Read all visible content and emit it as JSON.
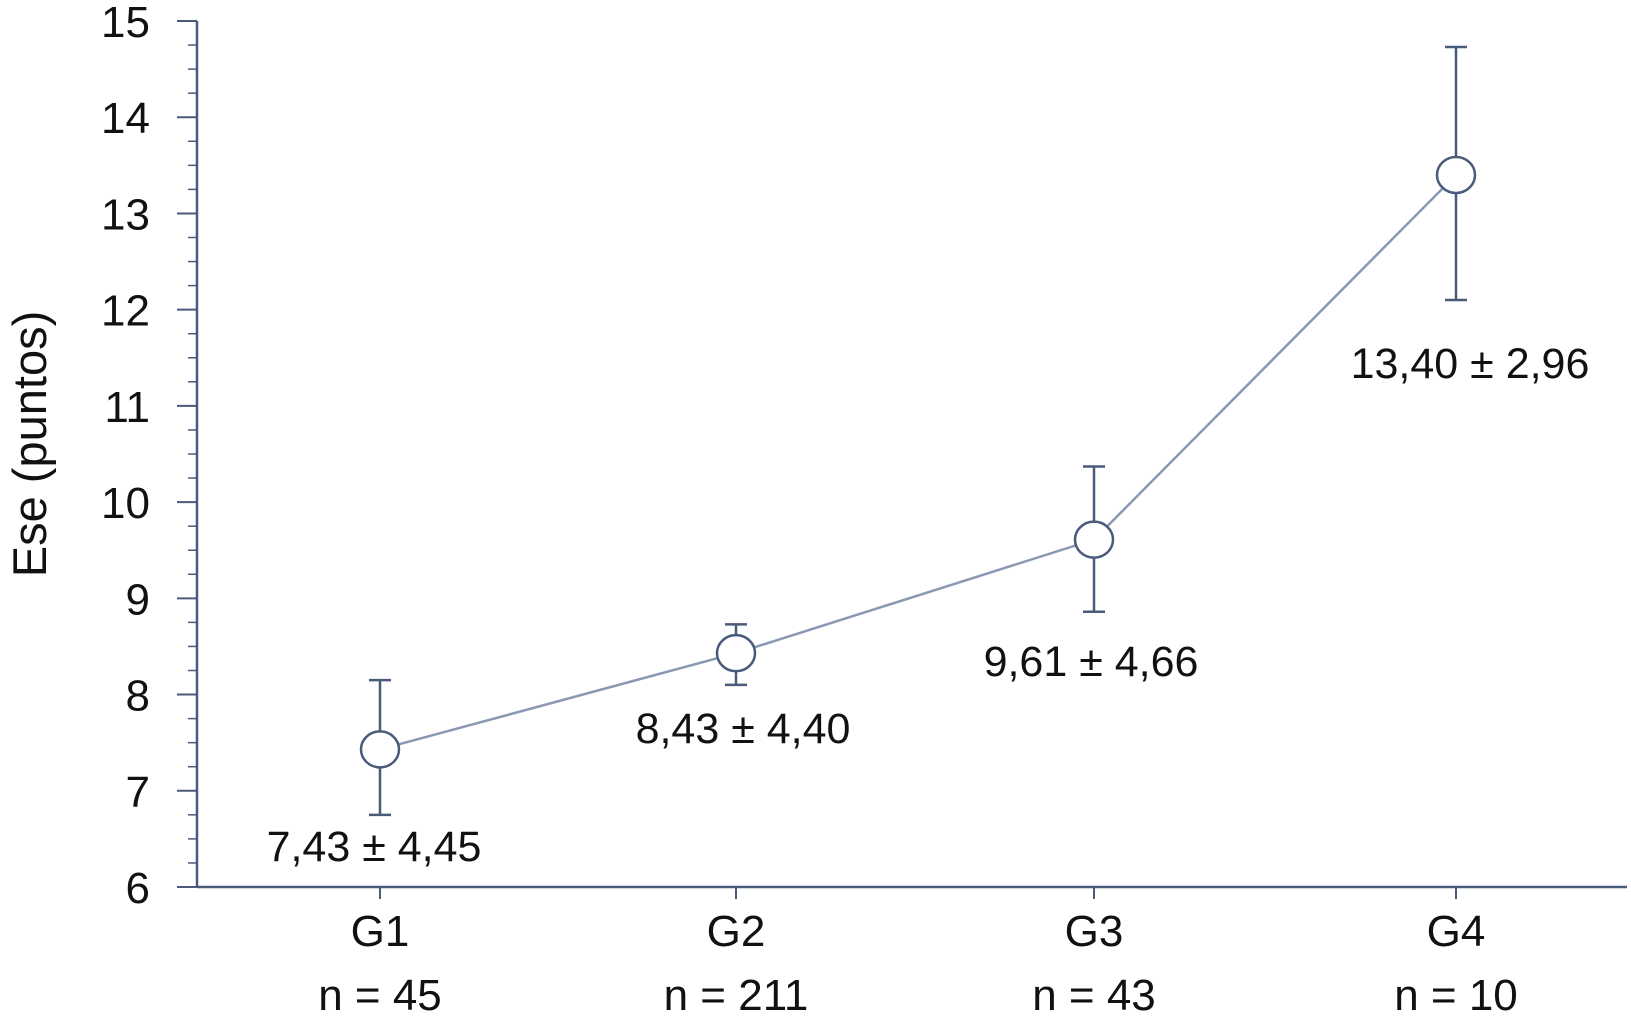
{
  "chart_data": {
    "type": "line",
    "title": "",
    "ylabel": "Ese (puntos)",
    "xlabel": "",
    "ylim": [
      6,
      15
    ],
    "y_ticks": [
      6,
      7,
      8,
      9,
      10,
      11,
      12,
      13,
      14,
      15
    ],
    "categories": [
      "G1",
      "G2",
      "G3",
      "G4"
    ],
    "category_sublabels": [
      "n = 45",
      "n = 211",
      "n = 43",
      "n = 10"
    ],
    "series": [
      {
        "values": [
          7.43,
          8.43,
          9.61,
          13.4
        ],
        "error_low": [
          6.75,
          8.1,
          8.86,
          12.1
        ],
        "error_high": [
          8.15,
          8.73,
          10.37,
          14.73
        ],
        "annotations": [
          "7,43 ± 4,45",
          "8,43 ± 4,40",
          "9,61 ± 4,66",
          "13,40 ± 2,96"
        ]
      }
    ],
    "grid": false,
    "legend": "none",
    "colors": {
      "axis": "#4a5a7a",
      "line": "#8a98b4",
      "marker_edge": "#4a5a7a",
      "marker_fill": "#ffffff"
    }
  }
}
